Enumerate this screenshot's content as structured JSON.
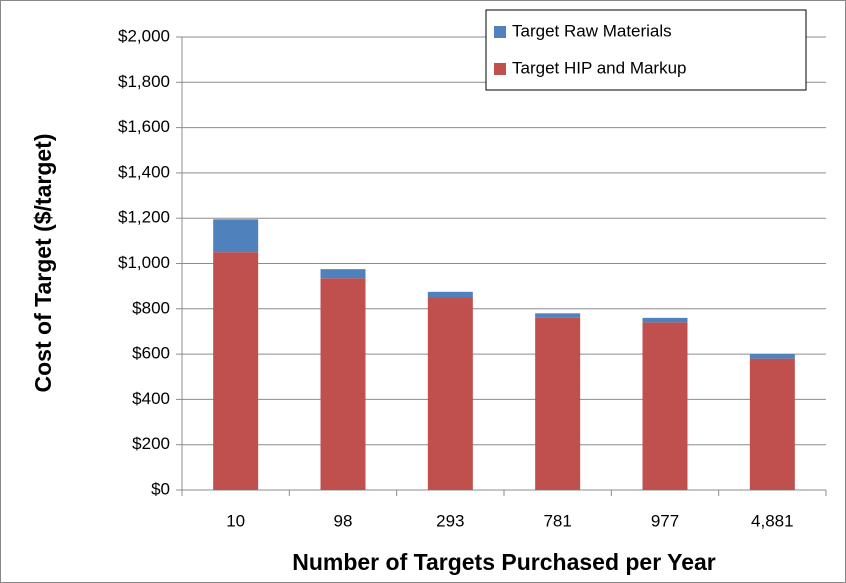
{
  "chart_data": {
    "type": "stacked_bar",
    "x_label": "Number of Targets Purchased per Year",
    "y_label": "Cost of Target ($/target)",
    "categories": [
      "10",
      "98",
      "293",
      "781",
      "977",
      "4,881"
    ],
    "series": [
      {
        "name": "Target Raw Materials",
        "color": "#4f81bd",
        "values": [
          145,
          40,
          25,
          20,
          20,
          20
        ]
      },
      {
        "name": "Target HIP and Markup",
        "color": "#c0504d",
        "values": [
          1050,
          935,
          850,
          760,
          740,
          580
        ]
      }
    ],
    "ylim": [
      0,
      2000
    ],
    "yticks": [
      {
        "value": 0,
        "label": "$0"
      },
      {
        "value": 200,
        "label": "$200"
      },
      {
        "value": 400,
        "label": "$400"
      },
      {
        "value": 600,
        "label": "$600"
      },
      {
        "value": 800,
        "label": "$800"
      },
      {
        "value": 1000,
        "label": "$1,000"
      },
      {
        "value": 1200,
        "label": "$1,200"
      },
      {
        "value": 1400,
        "label": "$1,400"
      },
      {
        "value": 1600,
        "label": "$1,600"
      },
      {
        "value": 1800,
        "label": "$1,800"
      },
      {
        "value": 2000,
        "label": "$2,000"
      }
    ],
    "grid": true,
    "legend_position": "upper right"
  }
}
